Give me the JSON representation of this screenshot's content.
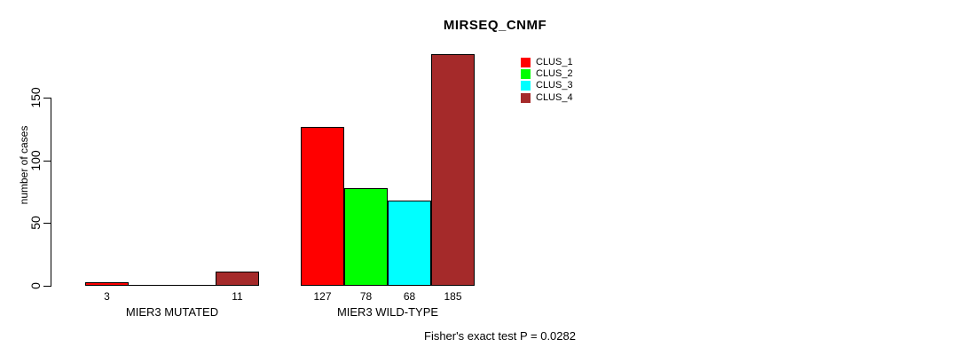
{
  "chart_data": {
    "type": "bar",
    "title": "MIRSEQ_CNMF",
    "ylabel": "number of cases",
    "xlabel": "",
    "categories": [
      "MIER3 MUTATED",
      "MIER3 WILD-TYPE"
    ],
    "series": [
      {
        "name": "CLUS_1",
        "color": "#FF0000",
        "values": [
          3,
          127
        ]
      },
      {
        "name": "CLUS_2",
        "color": "#00FF00",
        "values": [
          0,
          78
        ]
      },
      {
        "name": "CLUS_3",
        "color": "#00FFFF",
        "values": [
          0,
          68
        ]
      },
      {
        "name": "CLUS_4",
        "color": "#A52A2A",
        "values": [
          11,
          185
        ]
      }
    ],
    "yticks": [
      0,
      50,
      100,
      150
    ],
    "ylim": [
      0,
      185
    ],
    "grid": false,
    "legend_position": "top-right",
    "legend_entries": [
      "CLUS_1",
      "CLUS_2",
      "CLUS_3",
      "CLUS_4"
    ],
    "bar_value_labels": [
      3,
      11,
      127,
      78,
      68,
      185
    ],
    "annotation": "Fisher's exact test P = 0.0282"
  },
  "colors": {
    "bar_border": "#000000",
    "axis": "#000000",
    "text": "#000000",
    "background": "#ffffff"
  }
}
